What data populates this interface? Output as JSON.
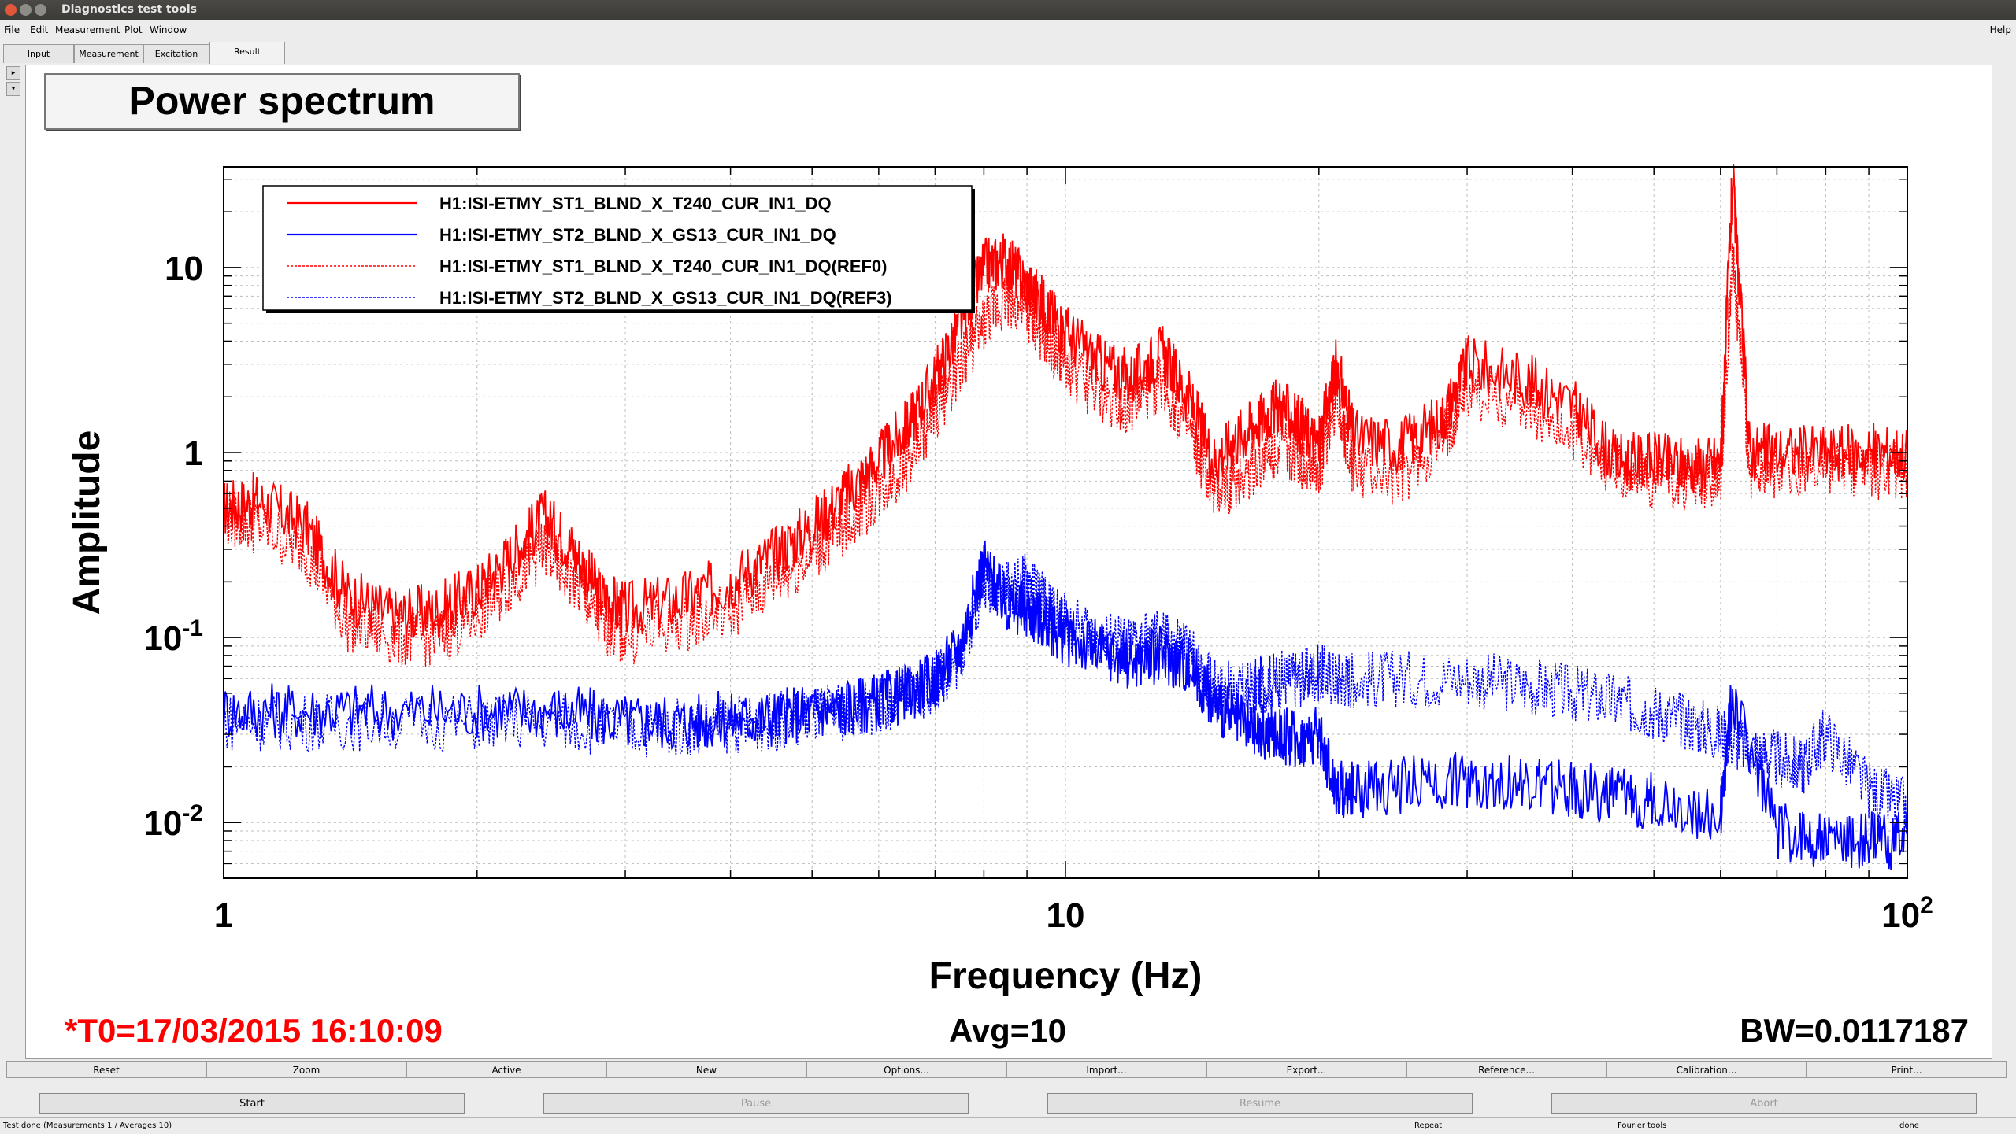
{
  "window": {
    "title": "Diagnostics test tools"
  },
  "menu": [
    "File",
    "Edit",
    "Measurement",
    "Plot",
    "Window"
  ],
  "menu_help": "Help",
  "tabs": [
    "Input",
    "Measurement",
    "Excitation",
    "Result"
  ],
  "scroll_arrows": [
    "▸",
    "▾"
  ],
  "plot": {
    "title": "Power spectrum"
  },
  "chart_data": {
    "type": "line",
    "xlabel": "Frequency (Hz)",
    "ylabel": "Amplitude",
    "xscale": "log",
    "yscale": "log",
    "xlim": [
      1,
      100
    ],
    "ylim": [
      0.005,
      35
    ],
    "xticks": [
      {
        "value": 1,
        "label": "1"
      },
      {
        "value": 10,
        "label": "10"
      },
      {
        "value": 100,
        "label": "10",
        "sup": "2"
      }
    ],
    "yticks": [
      {
        "value": 0.01,
        "label": "10",
        "sup": "-2"
      },
      {
        "value": 0.1,
        "label": "10",
        "sup": "-1"
      },
      {
        "value": 1,
        "label": "1"
      },
      {
        "value": 10,
        "label": "10"
      }
    ],
    "grid": true,
    "legend_position": "top-left",
    "series": [
      {
        "name": "H1:ISI-ETMY_ST1_BLND_X_T240_CUR_IN1_DQ",
        "color": "#ff0000",
        "dash": false,
        "x": [
          1,
          1.1,
          1.25,
          1.4,
          1.6,
          1.8,
          2.0,
          2.2,
          2.4,
          2.6,
          2.8,
          3.0,
          3.5,
          4,
          4.5,
          5,
          5.5,
          6,
          6.5,
          7,
          7.5,
          8,
          8.5,
          9,
          9.5,
          10,
          11,
          12,
          13,
          14,
          15,
          16,
          17,
          18,
          19,
          20,
          21,
          22,
          25,
          28,
          30,
          35,
          40,
          45,
          50,
          55,
          60,
          62,
          65,
          70,
          80,
          90,
          100
        ],
        "y": [
          0.5,
          0.55,
          0.4,
          0.17,
          0.13,
          0.14,
          0.18,
          0.28,
          0.45,
          0.3,
          0.17,
          0.14,
          0.16,
          0.2,
          0.28,
          0.4,
          0.6,
          0.9,
          1.4,
          2.5,
          5,
          10,
          11,
          8,
          6,
          4.5,
          3,
          2.5,
          3.5,
          2,
          0.9,
          1.2,
          1.5,
          1.8,
          1.4,
          1.1,
          3,
          1.2,
          1.1,
          1.5,
          3,
          2.5,
          1.8,
          0.9,
          0.9,
          0.85,
          0.9,
          30,
          1.0,
          1.0,
          1.0,
          1.0,
          1.0
        ]
      },
      {
        "name": "H1:ISI-ETMY_ST2_BLND_X_GS13_CUR_IN1_DQ",
        "color": "#0000ff",
        "dash": false,
        "x": [
          1,
          1.2,
          1.5,
          2,
          2.5,
          3,
          3.5,
          4,
          4.5,
          5,
          5.5,
          6,
          6.5,
          7,
          7.5,
          8,
          8.5,
          9,
          9.5,
          10,
          11,
          12,
          13,
          14,
          15,
          16,
          17,
          18,
          19,
          20,
          21,
          22,
          25,
          30,
          35,
          40,
          45,
          50,
          60,
          62,
          70,
          80,
          90,
          100
        ],
        "y": [
          0.04,
          0.04,
          0.04,
          0.04,
          0.04,
          0.035,
          0.035,
          0.036,
          0.037,
          0.04,
          0.042,
          0.045,
          0.05,
          0.06,
          0.09,
          0.25,
          0.15,
          0.14,
          0.12,
          0.1,
          0.085,
          0.075,
          0.08,
          0.07,
          0.045,
          0.035,
          0.03,
          0.03,
          0.028,
          0.03,
          0.015,
          0.015,
          0.016,
          0.017,
          0.016,
          0.015,
          0.014,
          0.013,
          0.011,
          0.05,
          0.009,
          0.008,
          0.008,
          0.008
        ]
      },
      {
        "name": "H1:ISI-ETMY_ST1_BLND_X_T240_CUR_IN1_DQ(REF0)",
        "color": "#ff0000",
        "dash": true,
        "x": [
          1,
          1.1,
          1.25,
          1.4,
          1.6,
          1.8,
          2.0,
          2.2,
          2.4,
          2.6,
          2.8,
          3.0,
          3.5,
          4,
          4.5,
          5,
          5.5,
          6,
          6.5,
          7,
          7.5,
          8,
          8.5,
          9,
          9.5,
          10,
          11,
          12,
          13,
          14,
          15,
          16,
          17,
          18,
          19,
          20,
          21,
          22,
          25,
          28,
          30,
          35,
          40,
          45,
          50,
          55,
          60,
          62,
          65,
          70,
          80,
          90,
          100
        ],
        "y": [
          0.45,
          0.4,
          0.3,
          0.12,
          0.1,
          0.1,
          0.13,
          0.2,
          0.3,
          0.2,
          0.12,
          0.1,
          0.12,
          0.14,
          0.2,
          0.28,
          0.4,
          0.6,
          0.9,
          1.6,
          3,
          5,
          7,
          5.5,
          4,
          3,
          2,
          1.8,
          2.4,
          1.3,
          0.6,
          0.7,
          0.9,
          1.1,
          0.9,
          0.8,
          2,
          0.8,
          0.7,
          1.1,
          2.2,
          1.8,
          1.3,
          0.8,
          0.7,
          0.7,
          0.7,
          12,
          0.8,
          0.8,
          0.8,
          0.8,
          0.8
        ]
      },
      {
        "name": "H1:ISI-ETMY_ST2_BLND_X_GS13_CUR_IN1_DQ(REF3)",
        "color": "#0000ff",
        "dash": true,
        "x": [
          1,
          1.2,
          1.5,
          2,
          2.5,
          3,
          3.5,
          4,
          4.5,
          5,
          5.5,
          6,
          6.5,
          7,
          7.5,
          8,
          8.5,
          9,
          9.5,
          10,
          11,
          12,
          13,
          14,
          15,
          16,
          17,
          18,
          19,
          20,
          21,
          22,
          25,
          30,
          35,
          40,
          45,
          50,
          55,
          60,
          65,
          70,
          75,
          80,
          90,
          100
        ],
        "y": [
          0.035,
          0.035,
          0.035,
          0.035,
          0.035,
          0.032,
          0.033,
          0.034,
          0.035,
          0.038,
          0.04,
          0.043,
          0.048,
          0.055,
          0.08,
          0.2,
          0.18,
          0.2,
          0.15,
          0.12,
          0.1,
          0.09,
          0.1,
          0.085,
          0.055,
          0.05,
          0.055,
          0.06,
          0.06,
          0.065,
          0.06,
          0.06,
          0.06,
          0.06,
          0.055,
          0.05,
          0.045,
          0.04,
          0.035,
          0.03,
          0.025,
          0.022,
          0.02,
          0.03,
          0.015,
          0.012
        ]
      }
    ]
  },
  "info": {
    "t0": "*T0=17/03/2015 16:10:09",
    "avg": "Avg=10",
    "bw": "BW=0.0117187"
  },
  "plot_buttons": [
    "Reset",
    "Zoom",
    "Active",
    "New",
    "Options...",
    "Import...",
    "Export...",
    "Reference...",
    "Calibration...",
    "Print..."
  ],
  "control_buttons": [
    {
      "label": "Start",
      "enabled": true
    },
    {
      "label": "Pause",
      "enabled": false
    },
    {
      "label": "Resume",
      "enabled": false
    },
    {
      "label": "Abort",
      "enabled": false
    }
  ],
  "status": {
    "main": "Test done (Measurements 1 / Averages 10)",
    "mode": "Repeat",
    "tool": "Fourier tools",
    "state": "done"
  },
  "colors": {
    "red": "#ff0000",
    "blue": "#0000ff",
    "close": "#e0573a",
    "min": "#8e8c86",
    "max": "#8e8c86"
  }
}
